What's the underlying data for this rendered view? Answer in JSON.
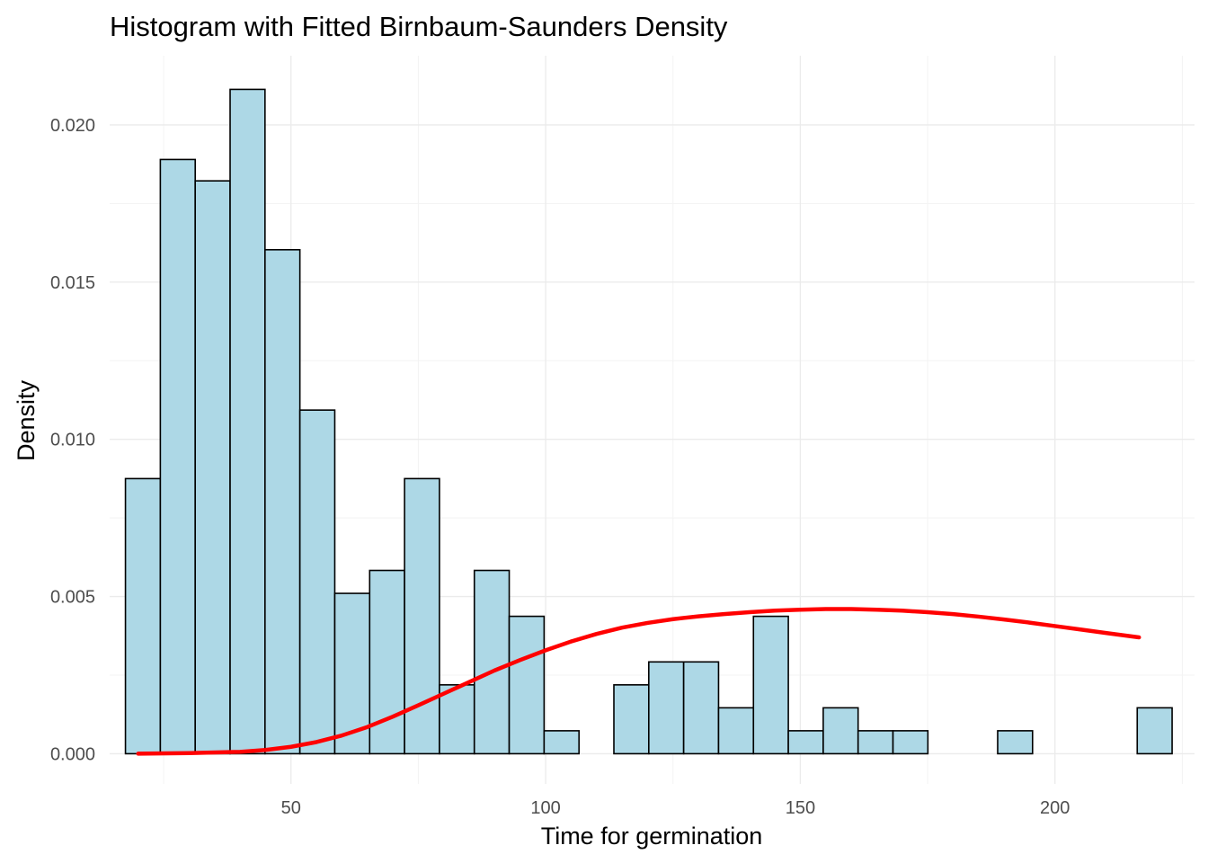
{
  "chart_data": {
    "type": "bar",
    "title": "Histogram with Fitted Birnbaum-Saunders Density",
    "xlabel": "Time for germination",
    "ylabel": "Density",
    "xlim": [
      14.4,
      227.4
    ],
    "ylim": [
      -0.00096,
      0.0222
    ],
    "x_ticks": [
      50,
      100,
      150,
      200
    ],
    "x_tick_labels": [
      "50",
      "100",
      "150",
      "200"
    ],
    "y_ticks": [
      0,
      0.005,
      0.01,
      0.015,
      0.02
    ],
    "y_tick_labels": [
      "0.000",
      "0.005",
      "0.010",
      "0.015",
      "0.020"
    ],
    "grid": true,
    "bins": {
      "start": 17.5,
      "width": 6.85,
      "densities": [
        0.00875,
        0.0189,
        0.01822,
        0.02113,
        0.01603,
        0.01093,
        0.0051,
        0.00583,
        0.00875,
        0.00219,
        0.00583,
        0.00437,
        0.00073,
        0.0,
        0.00219,
        0.00292,
        0.00292,
        0.00146,
        0.00437,
        0.00073,
        0.00146,
        0.00073,
        0.00073,
        0.0,
        0.0,
        0.00073,
        0.0,
        0.0,
        0.0,
        0.00146
      ]
    },
    "fill_color": "#add8e6",
    "edge_color": "#000000",
    "series": [
      {
        "type": "line",
        "color": "#ff0000",
        "x": [
          20,
          30,
          40,
          45,
          50,
          55,
          60,
          65,
          70,
          75,
          80,
          85,
          90,
          95,
          100,
          105,
          110,
          115,
          120,
          125,
          130,
          135,
          140,
          145,
          150,
          155,
          160,
          165,
          170,
          175,
          180,
          185,
          190,
          195,
          200,
          205,
          210,
          216.5
        ],
        "y": [
          0.0,
          2e-05,
          6e-05,
          0.00012,
          0.00022,
          0.00037,
          0.00058,
          0.00085,
          0.00118,
          0.00154,
          0.00191,
          0.00228,
          0.00265,
          0.00298,
          0.00329,
          0.00357,
          0.00381,
          0.00401,
          0.00416,
          0.00428,
          0.00437,
          0.00444,
          0.0045,
          0.00455,
          0.00458,
          0.0046,
          0.0046,
          0.00458,
          0.00455,
          0.0045,
          0.00444,
          0.00436,
          0.00427,
          0.00417,
          0.00406,
          0.00395,
          0.00384,
          0.0037
        ]
      }
    ]
  }
}
